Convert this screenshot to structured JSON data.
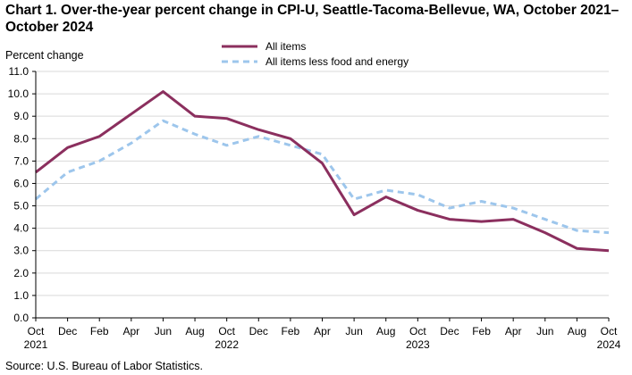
{
  "title": "Chart 1. Over-the-year percent change in CPI-U, Seattle-Tacoma-Bellevue,  WA, October 2021–October 2024",
  "source": "Source: U.S. Bureau  of Labor Statistics.",
  "chart_data": {
    "type": "line",
    "title": "Chart 1. Over-the-year percent change in CPI-U, Seattle-Tacoma-Bellevue,  WA, October 2021–October 2024",
    "ylabel": "Percent change",
    "xlabel": "",
    "ylim": [
      0,
      11
    ],
    "yticks": [
      "0.0",
      "1.0",
      "2.0",
      "3.0",
      "4.0",
      "5.0",
      "6.0",
      "7.0",
      "8.0",
      "9.0",
      "10.0",
      "11.0"
    ],
    "categories": [
      "Oct",
      "Dec",
      "Feb",
      "Apr",
      "Jun",
      "Aug",
      "Oct",
      "Dec",
      "Feb",
      "Apr",
      "Jun",
      "Aug",
      "Oct",
      "Dec",
      "Feb",
      "Apr",
      "Jun",
      "Aug",
      "Oct"
    ],
    "years": [
      {
        "index": 0,
        "label": "2021"
      },
      {
        "index": 6,
        "label": "2022"
      },
      {
        "index": 12,
        "label": "2023"
      },
      {
        "index": 18,
        "label": "2024"
      }
    ],
    "legend_position": "top-center",
    "series": [
      {
        "name": "All items",
        "color": "#8B2F5E",
        "style": "solid",
        "values": [
          6.5,
          7.6,
          8.1,
          9.1,
          10.1,
          9.0,
          8.9,
          8.4,
          8.0,
          6.9,
          4.6,
          5.4,
          4.8,
          4.4,
          4.3,
          4.4,
          3.8,
          3.1,
          3.0
        ]
      },
      {
        "name": "All items less food and energy",
        "color": "#9DC6EC",
        "style": "dashed",
        "values": [
          5.3,
          6.5,
          7.0,
          7.8,
          8.8,
          8.2,
          7.7,
          8.1,
          7.7,
          7.3,
          5.3,
          5.7,
          5.5,
          4.9,
          5.2,
          4.9,
          4.4,
          3.9,
          3.8
        ]
      }
    ]
  }
}
